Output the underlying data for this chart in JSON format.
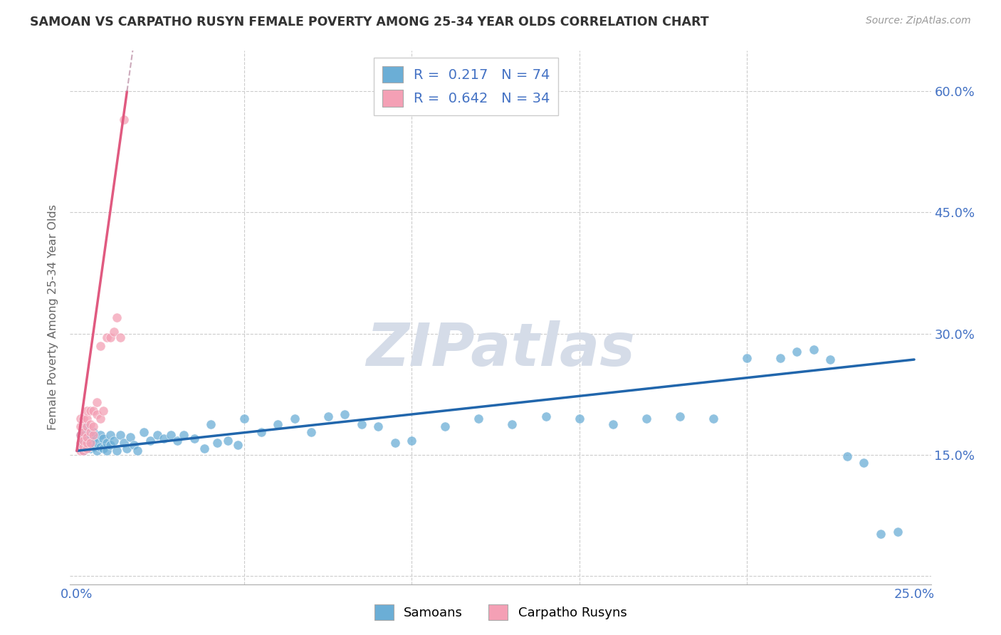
{
  "title": "SAMOAN VS CARPATHO RUSYN FEMALE POVERTY AMONG 25-34 YEAR OLDS CORRELATION CHART",
  "source": "Source: ZipAtlas.com",
  "ylabel": "Female Poverty Among 25-34 Year Olds",
  "xlim": [
    -0.002,
    0.255
  ],
  "ylim": [
    -0.01,
    0.65
  ],
  "xtick_positions": [
    0.0,
    0.05,
    0.1,
    0.15,
    0.2,
    0.25
  ],
  "xticklabels": [
    "0.0%",
    "",
    "",
    "",
    "",
    "25.0%"
  ],
  "ytick_positions": [
    0.0,
    0.15,
    0.3,
    0.45,
    0.6
  ],
  "yticklabels_right": [
    "",
    "15.0%",
    "30.0%",
    "45.0%",
    "60.0%"
  ],
  "samoan_color": "#6baed6",
  "carpatho_color": "#f4a0b5",
  "samoan_line_color": "#2166ac",
  "carpatho_line_color": "#e05a80",
  "carpatho_dash_color": "#ccaabb",
  "samoan_R": 0.217,
  "samoan_N": 74,
  "carpatho_R": 0.642,
  "carpatho_N": 34,
  "background_color": "#ffffff",
  "grid_color": "#cccccc",
  "title_color": "#333333",
  "axis_label_color": "#666666",
  "tick_color": "#4472c4",
  "watermark_text": "ZIPatlas",
  "watermark_color": "#d5dce8",
  "samoan_x": [
    0.001,
    0.001,
    0.002,
    0.002,
    0.002,
    0.003,
    0.003,
    0.003,
    0.004,
    0.004,
    0.004,
    0.005,
    0.005,
    0.005,
    0.006,
    0.006,
    0.007,
    0.007,
    0.008,
    0.008,
    0.009,
    0.009,
    0.01,
    0.01,
    0.011,
    0.012,
    0.013,
    0.014,
    0.015,
    0.016,
    0.017,
    0.018,
    0.02,
    0.022,
    0.024,
    0.026,
    0.028,
    0.03,
    0.032,
    0.035,
    0.038,
    0.04,
    0.042,
    0.045,
    0.048,
    0.05,
    0.055,
    0.06,
    0.065,
    0.07,
    0.075,
    0.08,
    0.085,
    0.09,
    0.095,
    0.1,
    0.11,
    0.12,
    0.13,
    0.14,
    0.15,
    0.16,
    0.17,
    0.18,
    0.19,
    0.2,
    0.21,
    0.215,
    0.22,
    0.225,
    0.23,
    0.235,
    0.24,
    0.245
  ],
  "samoan_y": [
    0.16,
    0.175,
    0.155,
    0.168,
    0.18,
    0.162,
    0.172,
    0.185,
    0.158,
    0.168,
    0.175,
    0.16,
    0.17,
    0.178,
    0.155,
    0.165,
    0.16,
    0.175,
    0.158,
    0.17,
    0.155,
    0.165,
    0.162,
    0.175,
    0.168,
    0.155,
    0.175,
    0.165,
    0.158,
    0.172,
    0.162,
    0.155,
    0.178,
    0.168,
    0.175,
    0.17,
    0.175,
    0.168,
    0.175,
    0.17,
    0.158,
    0.188,
    0.165,
    0.168,
    0.162,
    0.195,
    0.178,
    0.188,
    0.195,
    0.178,
    0.198,
    0.2,
    0.188,
    0.185,
    0.165,
    0.168,
    0.185,
    0.195,
    0.188,
    0.198,
    0.195,
    0.188,
    0.195,
    0.198,
    0.195,
    0.27,
    0.27,
    0.278,
    0.28,
    0.268,
    0.148,
    0.14,
    0.052,
    0.055
  ],
  "carpatho_x": [
    0.001,
    0.001,
    0.001,
    0.001,
    0.001,
    0.002,
    0.002,
    0.002,
    0.002,
    0.002,
    0.003,
    0.003,
    0.003,
    0.003,
    0.003,
    0.003,
    0.004,
    0.004,
    0.004,
    0.004,
    0.005,
    0.005,
    0.005,
    0.006,
    0.006,
    0.007,
    0.007,
    0.008,
    0.009,
    0.01,
    0.011,
    0.012,
    0.013,
    0.014
  ],
  "carpatho_y": [
    0.155,
    0.165,
    0.175,
    0.185,
    0.195,
    0.155,
    0.16,
    0.168,
    0.178,
    0.195,
    0.158,
    0.165,
    0.172,
    0.185,
    0.195,
    0.205,
    0.165,
    0.178,
    0.188,
    0.205,
    0.175,
    0.185,
    0.205,
    0.2,
    0.215,
    0.195,
    0.285,
    0.205,
    0.295,
    0.295,
    0.302,
    0.32,
    0.295,
    0.565
  ],
  "samoan_line_x0": 0.0,
  "samoan_line_y0": 0.155,
  "samoan_line_x1": 0.25,
  "samoan_line_y1": 0.268,
  "carpatho_line_x0": 0.0,
  "carpatho_line_y0": 0.155,
  "carpatho_line_x1": 0.015,
  "carpatho_line_y1": 0.6
}
